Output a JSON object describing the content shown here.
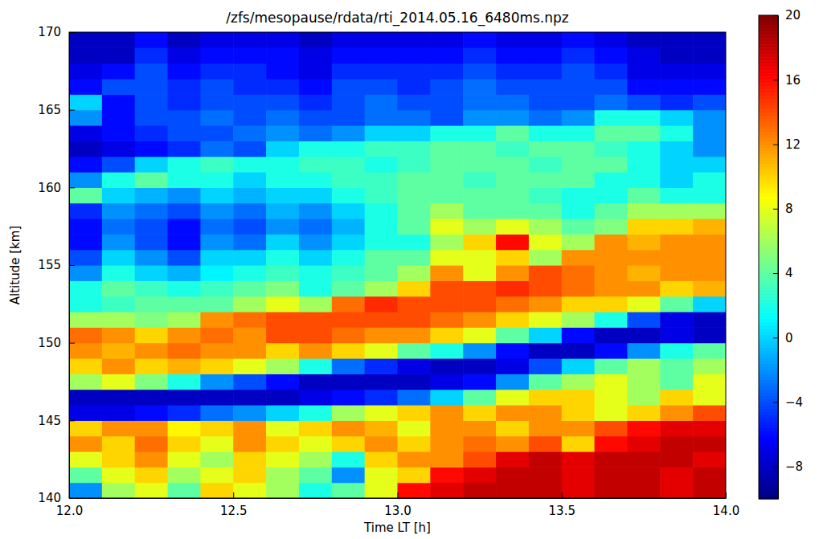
{
  "chart_data": {
    "type": "heatmap",
    "title": "/zfs/mesopause/rdata/rti_2014.05.16_6480ms.npz",
    "x_label": "Time LT [h]",
    "y_label": "Altitude [km]",
    "xlim": [
      12,
      14
    ],
    "xticks": [
      {
        "value": 12,
        "label": "12.0"
      },
      {
        "value": 12.5,
        "label": "12.5"
      },
      {
        "value": 13,
        "label": "13.0"
      },
      {
        "value": 13.5,
        "label": "13.5"
      },
      {
        "value": 14,
        "label": "14.0"
      }
    ],
    "ylim": [
      140,
      170
    ],
    "yticks": [
      140,
      145,
      150,
      155,
      160,
      165,
      170
    ],
    "x": [
      12.05,
      12.15,
      12.25,
      12.35,
      12.45,
      12.55,
      12.65,
      12.75,
      12.85,
      12.95,
      13.05,
      13.15,
      13.25,
      13.35,
      13.45,
      13.55,
      13.65,
      13.75,
      13.85,
      13.95
    ],
    "y": [
      140.5,
      141.5,
      142.5,
      143.5,
      144.5,
      145.5,
      146.5,
      147.5,
      148.5,
      149.5,
      150.5,
      151.5,
      152.5,
      153.5,
      154.5,
      155.5,
      156.5,
      157.5,
      158.5,
      159.5,
      160.5,
      161.5,
      162.5,
      163.5,
      164.5,
      165.5,
      166.5,
      167.5,
      168.5,
      169.5
    ],
    "values": [
      [
        -2,
        6,
        8,
        4,
        10,
        8,
        6,
        2,
        4,
        8,
        16,
        17,
        18,
        18,
        18,
        17,
        18,
        18,
        17,
        18
      ],
      [
        4,
        8,
        10,
        6,
        8,
        10,
        6,
        4,
        -2,
        8,
        10,
        16,
        17,
        18,
        18,
        17,
        18,
        18,
        17,
        18
      ],
      [
        8,
        10,
        12,
        8,
        6,
        10,
        8,
        6,
        2,
        10,
        12,
        12,
        14,
        17,
        18,
        17,
        18,
        18,
        18,
        17
      ],
      [
        12,
        10,
        13,
        10,
        8,
        12,
        10,
        8,
        10,
        12,
        10,
        12,
        13,
        12,
        14,
        10,
        16,
        17,
        18,
        18
      ],
      [
        10,
        12,
        12,
        9,
        10,
        12,
        8,
        10,
        12,
        11,
        8,
        12,
        12,
        10,
        12,
        12,
        14,
        16,
        17,
        17
      ],
      [
        -7,
        -7,
        -6,
        -5,
        -3,
        -2,
        0,
        2,
        6,
        8,
        10,
        12,
        10,
        12,
        12,
        10,
        8,
        10,
        12,
        14
      ],
      [
        -8,
        -8,
        -8,
        -8,
        -8,
        -8,
        -8,
        -7,
        -6,
        -5,
        -3,
        0,
        4,
        8,
        10,
        10,
        8,
        6,
        10,
        8
      ],
      [
        6,
        8,
        5,
        2,
        -2,
        -4,
        -6,
        -8,
        -8,
        -8,
        -8,
        -7,
        -6,
        -2,
        4,
        6,
        8,
        6,
        4,
        8
      ],
      [
        10,
        12,
        10,
        11,
        10,
        8,
        6,
        2,
        -3,
        -5,
        -7,
        -8,
        -8,
        -7,
        -4,
        0,
        4,
        6,
        4,
        6
      ],
      [
        12,
        11,
        12,
        13,
        12,
        12,
        10,
        12,
        10,
        8,
        4,
        2,
        -2,
        -6,
        -8,
        -8,
        -6,
        -2,
        2,
        4
      ],
      [
        13,
        12,
        10,
        12,
        13,
        12,
        14,
        14,
        13,
        12,
        12,
        10,
        8,
        4,
        0,
        -6,
        -8,
        -8,
        -7,
        -8
      ],
      [
        6,
        6,
        5,
        6,
        12,
        13,
        14,
        14,
        14,
        14,
        14,
        13,
        12,
        10,
        8,
        6,
        2,
        -4,
        -7,
        -8
      ],
      [
        2,
        3,
        4,
        4,
        4,
        6,
        8,
        6,
        13,
        15,
        14,
        14,
        14,
        13,
        12,
        10,
        10,
        8,
        4,
        0
      ],
      [
        2,
        4,
        3,
        2,
        3,
        4,
        5,
        2,
        4,
        6,
        10,
        14,
        14,
        15,
        14,
        13,
        12,
        12,
        10,
        11
      ],
      [
        -2,
        2,
        0,
        -1,
        1,
        2,
        3,
        2,
        3,
        4,
        6,
        12,
        8,
        12,
        14,
        13,
        12,
        11,
        12,
        12
      ],
      [
        -4,
        0,
        -2,
        -4,
        0,
        0,
        2,
        0,
        2,
        4,
        4,
        8,
        8,
        10,
        6,
        12,
        12,
        12,
        12,
        12
      ],
      [
        -6,
        -2,
        -4,
        -6,
        -2,
        -3,
        0,
        -2,
        0,
        2,
        2,
        6,
        10,
        16,
        8,
        6,
        12,
        11,
        12,
        12
      ],
      [
        -6,
        -3,
        -4,
        -6,
        -3,
        -4,
        -2,
        -3,
        -1,
        2,
        4,
        8,
        6,
        8,
        6,
        4,
        5,
        10,
        10,
        11
      ],
      [
        -5,
        -2,
        -3,
        -4,
        -2,
        -3,
        -1,
        -2,
        0,
        2,
        4,
        6,
        4,
        4,
        4,
        2,
        4,
        6,
        6,
        6
      ],
      [
        4,
        0,
        -1,
        -2,
        0,
        -1,
        0,
        0,
        2,
        3,
        4,
        4,
        4,
        4,
        3,
        2,
        2,
        4,
        2,
        2
      ],
      [
        -2,
        2,
        4,
        2,
        2,
        0,
        2,
        2,
        3,
        3,
        4,
        4,
        3,
        4,
        4,
        4,
        2,
        2,
        0,
        2
      ],
      [
        -6,
        -4,
        0,
        2,
        3,
        2,
        2,
        3,
        3,
        2,
        3,
        4,
        4,
        4,
        3,
        4,
        4,
        2,
        0,
        0
      ],
      [
        -8,
        -7,
        -6,
        -5,
        -3,
        -4,
        0,
        2,
        2,
        3,
        3,
        4,
        4,
        3,
        4,
        4,
        3,
        2,
        0,
        -2
      ],
      [
        -7,
        -6,
        -5,
        -4,
        -4,
        -3,
        -2,
        -3,
        -2,
        0,
        0,
        2,
        2,
        4,
        2,
        2,
        4,
        4,
        2,
        -2
      ],
      [
        -2,
        -6,
        -4,
        -4,
        -3,
        -4,
        -3,
        -4,
        -4,
        -3,
        -3,
        -4,
        -2,
        -2,
        -3,
        -2,
        2,
        2,
        0,
        -2
      ],
      [
        0,
        -6,
        -4,
        -5,
        -4,
        -4,
        -4,
        -5,
        -4,
        -3,
        -4,
        -4,
        -3,
        -3,
        -4,
        -4,
        -3,
        -4,
        -5,
        -4
      ],
      [
        -6,
        -4,
        -4,
        -5,
        -4,
        -5,
        -5,
        -6,
        -4,
        -4,
        -5,
        -4,
        -3,
        -4,
        -4,
        -4,
        -4,
        -6,
        -6,
        -6
      ],
      [
        -7,
        -6,
        -4,
        -6,
        -5,
        -5,
        -6,
        -7,
        -5,
        -5,
        -5,
        -5,
        -4,
        -5,
        -5,
        -4,
        -5,
        -7,
        -7,
        -7
      ],
      [
        -8,
        -8,
        -5,
        -7,
        -6,
        -6,
        -6,
        -7,
        -6,
        -6,
        -6,
        -6,
        -5,
        -6,
        -6,
        -5,
        -6,
        -7,
        -8,
        -8
      ],
      [
        -8,
        -8,
        -6,
        -8,
        -7,
        -7,
        -7,
        -8,
        -7,
        -7,
        -7,
        -7,
        -6,
        -7,
        -7,
        -6,
        -7,
        -8,
        -8,
        -8
      ]
    ],
    "colorbar": {
      "range": [
        -10,
        20
      ],
      "ticks": [
        {
          "value": -8,
          "label": "−8"
        },
        {
          "value": -4,
          "label": "−4"
        },
        0,
        4,
        8,
        12,
        16,
        20
      ]
    }
  }
}
